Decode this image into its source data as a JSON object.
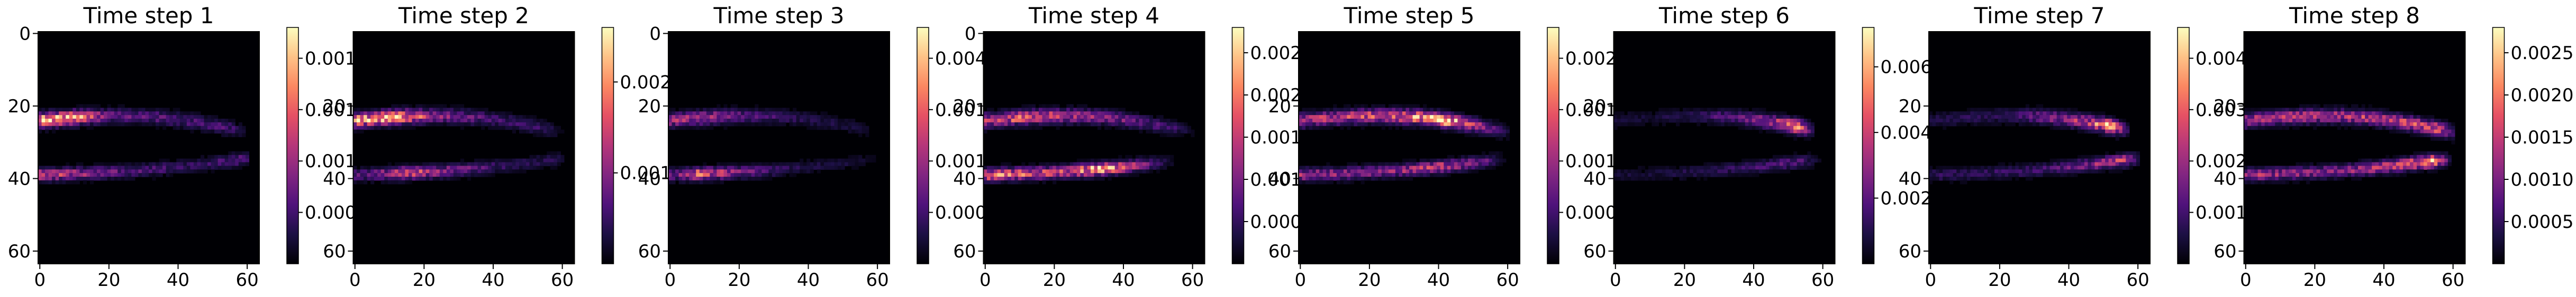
{
  "colormap": {
    "name": "magma",
    "stops": [
      "#000004",
      "#1c1044",
      "#4f127b",
      "#812581",
      "#b5367a",
      "#e55064",
      "#fb8761",
      "#fec287",
      "#fcfdbf"
    ]
  },
  "chart_data": [
    {
      "type": "heatmap",
      "title": "Time step 1",
      "x_ticks": [
        "0",
        "20",
        "40",
        "60"
      ],
      "y_ticks": [
        "0",
        "20",
        "40",
        "60"
      ],
      "xlim": [
        0,
        64
      ],
      "ylim": [
        64,
        0
      ],
      "grid_size": [
        64,
        64
      ],
      "colorbar_ticks": [
        "0.000",
        "0.001",
        "0.001",
        "0.001"
      ],
      "colorbar_range": [
        0,
        0.0018
      ],
      "pattern": {
        "upper": [
          [
            2,
            1.0
          ],
          [
            10,
            0.9
          ],
          [
            20,
            0.35
          ],
          [
            34,
            0.3
          ],
          [
            55,
            0.25
          ]
        ],
        "lower": [
          [
            2,
            0.6
          ],
          [
            10,
            0.5
          ],
          [
            24,
            0.3
          ],
          [
            45,
            0.2
          ],
          [
            58,
            0.3
          ]
        ]
      }
    },
    {
      "type": "heatmap",
      "title": "Time step 2",
      "x_ticks": [
        "0",
        "20",
        "40",
        "60"
      ],
      "y_ticks": [
        "20",
        "40",
        "60"
      ],
      "xlim": [
        0,
        64
      ],
      "ylim": [
        64,
        0
      ],
      "grid_size": [
        64,
        64
      ],
      "colorbar_ticks": [
        "0.001",
        "0.002"
      ],
      "colorbar_range": [
        0,
        0.0028
      ],
      "pattern": {
        "upper": [
          [
            4,
            0.9
          ],
          [
            12,
            1.0
          ],
          [
            22,
            0.5
          ],
          [
            40,
            0.25
          ],
          [
            55,
            0.2
          ]
        ],
        "lower": [
          [
            4,
            0.3
          ],
          [
            14,
            0.7
          ],
          [
            26,
            0.45
          ],
          [
            42,
            0.2
          ],
          [
            58,
            0.15
          ]
        ]
      }
    },
    {
      "type": "heatmap",
      "title": "Time step 3",
      "x_ticks": [
        "0",
        "20",
        "40",
        "60"
      ],
      "y_ticks": [
        "0",
        "20",
        "40",
        "60"
      ],
      "xlim": [
        0,
        64
      ],
      "ylim": [
        64,
        0
      ],
      "grid_size": [
        64,
        64
      ],
      "colorbar_ticks": [
        "0.000",
        "0.001",
        "0.001",
        "0.004"
      ],
      "colorbar_range": [
        0,
        0.004
      ],
      "pattern": {
        "upper": [
          [
            2,
            0.5
          ],
          [
            10,
            0.55
          ],
          [
            22,
            0.3
          ],
          [
            40,
            0.15
          ],
          [
            55,
            0.1
          ]
        ],
        "lower": [
          [
            2,
            0.35
          ],
          [
            8,
            0.75
          ],
          [
            20,
            0.4
          ],
          [
            35,
            0.15
          ],
          [
            55,
            0.1
          ]
        ]
      }
    },
    {
      "type": "heatmap",
      "title": "Time step 4",
      "x_ticks": [
        "0",
        "20",
        "40",
        "60"
      ],
      "y_ticks": [
        "0",
        "20",
        "40",
        "60"
      ],
      "xlim": [
        0,
        64
      ],
      "ylim": [
        64,
        0
      ],
      "grid_size": [
        64,
        64
      ],
      "colorbar_ticks": [
        "0.000",
        "0.001",
        "0.001",
        "0.002",
        "0.002"
      ],
      "colorbar_range": [
        0,
        0.0027
      ],
      "pattern": {
        "upper": [
          [
            2,
            0.6
          ],
          [
            12,
            0.75
          ],
          [
            24,
            0.55
          ],
          [
            38,
            0.4
          ],
          [
            55,
            0.2
          ]
        ],
        "lower": [
          [
            2,
            0.8
          ],
          [
            12,
            0.7
          ],
          [
            24,
            0.6
          ],
          [
            33,
            1.0
          ],
          [
            50,
            0.2
          ]
        ]
      }
    },
    {
      "type": "heatmap",
      "title": "Time step 5",
      "x_ticks": [
        "0",
        "20",
        "40",
        "60"
      ],
      "y_ticks": [
        "20",
        "40",
        "60"
      ],
      "xlim": [
        0,
        64
      ],
      "ylim": [
        64,
        0
      ],
      "grid_size": [
        64,
        64
      ],
      "colorbar_ticks": [
        "0.000",
        "0.001",
        "0.001",
        "0.002"
      ],
      "colorbar_range": [
        0,
        0.0026
      ],
      "pattern": {
        "upper": [
          [
            4,
            0.55
          ],
          [
            16,
            0.6
          ],
          [
            30,
            0.75
          ],
          [
            42,
            1.0
          ],
          [
            56,
            0.3
          ]
        ],
        "lower": [
          [
            4,
            0.5
          ],
          [
            14,
            0.45
          ],
          [
            28,
            0.45
          ],
          [
            40,
            0.6
          ],
          [
            54,
            0.3
          ]
        ]
      }
    },
    {
      "type": "heatmap",
      "title": "Time step 6",
      "x_ticks": [
        "0",
        "20",
        "40",
        "60"
      ],
      "y_ticks": [
        "20",
        "40",
        "60"
      ],
      "xlim": [
        0,
        64
      ],
      "ylim": [
        64,
        0
      ],
      "grid_size": [
        64,
        64
      ],
      "colorbar_ticks": [
        "0.002",
        "0.004",
        "0.006"
      ],
      "colorbar_range": [
        0,
        0.006
      ],
      "pattern": {
        "upper": [
          [
            8,
            0.1
          ],
          [
            22,
            0.15
          ],
          [
            36,
            0.35
          ],
          [
            48,
            0.6
          ],
          [
            52,
            1.0
          ]
        ],
        "lower": [
          [
            8,
            0.1
          ],
          [
            22,
            0.15
          ],
          [
            36,
            0.2
          ],
          [
            48,
            0.3
          ],
          [
            54,
            0.25
          ]
        ]
      }
    },
    {
      "type": "heatmap",
      "title": "Time step 7",
      "x_ticks": [
        "0",
        "20",
        "40",
        "60"
      ],
      "y_ticks": [
        "20",
        "40",
        "60"
      ],
      "xlim": [
        0,
        64
      ],
      "ylim": [
        64,
        0
      ],
      "grid_size": [
        64,
        64
      ],
      "colorbar_ticks": [
        "0.001",
        "0.002",
        "0.003",
        "0.004"
      ],
      "colorbar_range": [
        0,
        0.0048
      ],
      "pattern": {
        "upper": [
          [
            8,
            0.15
          ],
          [
            22,
            0.2
          ],
          [
            34,
            0.4
          ],
          [
            46,
            0.6
          ],
          [
            52,
            1.0
          ]
        ],
        "lower": [
          [
            8,
            0.2
          ],
          [
            22,
            0.2
          ],
          [
            34,
            0.25
          ],
          [
            48,
            0.45
          ],
          [
            56,
            0.6
          ]
        ]
      }
    },
    {
      "type": "heatmap",
      "title": "Time step 8",
      "x_ticks": [
        "0",
        "20",
        "40",
        "60"
      ],
      "y_ticks": [
        "20",
        "40",
        "60"
      ],
      "xlim": [
        0,
        64
      ],
      "ylim": [
        64,
        0
      ],
      "grid_size": [
        64,
        64
      ],
      "colorbar_ticks": [
        "0.0005",
        "0.0010",
        "0.0015",
        "0.0020",
        "0.0025"
      ],
      "colorbar_range": [
        0,
        0.0027
      ],
      "pattern": {
        "upper": [
          [
            4,
            0.55
          ],
          [
            14,
            0.6
          ],
          [
            28,
            0.55
          ],
          [
            42,
            0.6
          ],
          [
            56,
            0.7
          ]
        ],
        "lower": [
          [
            4,
            0.5
          ],
          [
            14,
            0.45
          ],
          [
            30,
            0.45
          ],
          [
            46,
            0.7
          ],
          [
            54,
            1.0
          ]
        ]
      }
    }
  ]
}
